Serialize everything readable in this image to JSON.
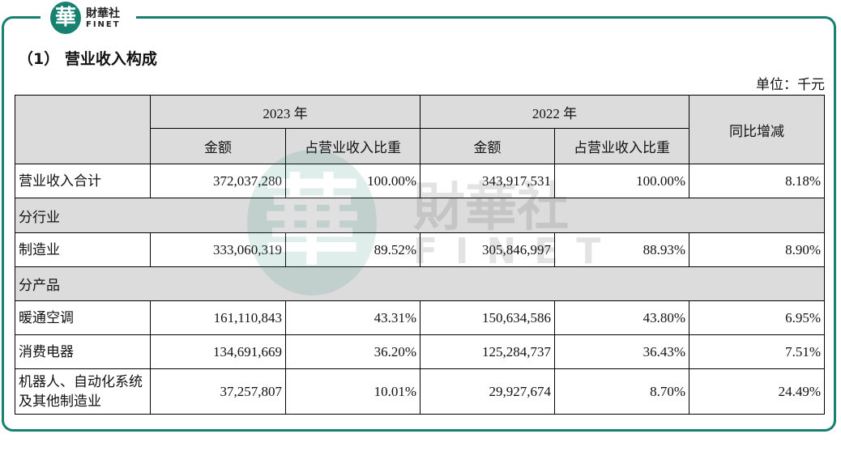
{
  "logo": {
    "mark": "華",
    "name": "財華社",
    "sub": "FINET"
  },
  "heading": "（1） 营业收入构成",
  "unit": "单位：千元",
  "table": {
    "header": {
      "years": [
        "2023 年",
        "2022 年"
      ],
      "sub": [
        "金额",
        "占营业收入比重",
        "金额",
        "占营业收入比重"
      ],
      "change": "同比增减"
    },
    "rows": [
      [
        "营业收入合计",
        "372,037,280",
        "100.00%",
        "343,917,531",
        "100.00%",
        "8.18%"
      ],
      [
        "分行业"
      ],
      [
        "制造业",
        "333,060,319",
        "89.52%",
        "305,846,997",
        "88.93%",
        "8.90%"
      ],
      [
        "分产品"
      ],
      [
        "暖通空调",
        "161,110,843",
        "43.31%",
        "150,634,586",
        "43.80%",
        "6.95%"
      ],
      [
        "消费电器",
        "134,691,669",
        "36.20%",
        "125,284,737",
        "36.43%",
        "7.51%"
      ],
      [
        "机器人、自动化系统及其他制造业",
        "37,257,807",
        "10.01%",
        "29,927,674",
        "8.70%",
        "24.49%"
      ]
    ]
  }
}
